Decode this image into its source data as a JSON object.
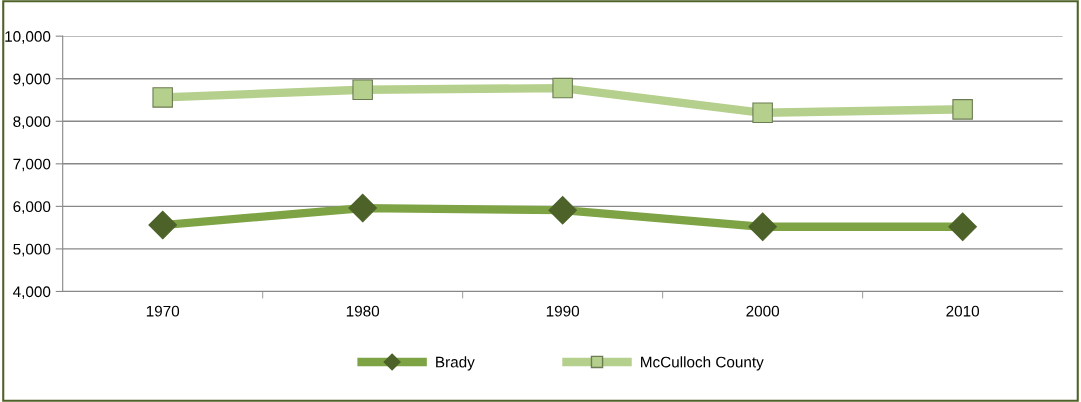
{
  "chart_data": {
    "type": "line",
    "categories": [
      "1970",
      "1980",
      "1990",
      "2000",
      "2010"
    ],
    "series": [
      {
        "name": "Brady",
        "color": "#7ea344",
        "marker": "diamond",
        "values": [
          5560,
          5960,
          5910,
          5520,
          5520
        ]
      },
      {
        "name": "McCulloch County",
        "color": "#b5cf8c",
        "marker": "square",
        "values": [
          8560,
          8740,
          8780,
          8200,
          8280
        ]
      }
    ],
    "ylim": [
      4000,
      10000
    ],
    "yticks": [
      {
        "value": 4000,
        "label": "4,000"
      },
      {
        "value": 5000,
        "label": "5,000"
      },
      {
        "value": 6000,
        "label": "6,000"
      },
      {
        "value": 7000,
        "label": "7,000"
      },
      {
        "value": 8000,
        "label": "8,000"
      },
      {
        "value": 9000,
        "label": "9,000"
      },
      {
        "value": 10000,
        "label": "10,000"
      }
    ],
    "grid": "y",
    "legend": "bottom",
    "line_style": "solid"
  }
}
